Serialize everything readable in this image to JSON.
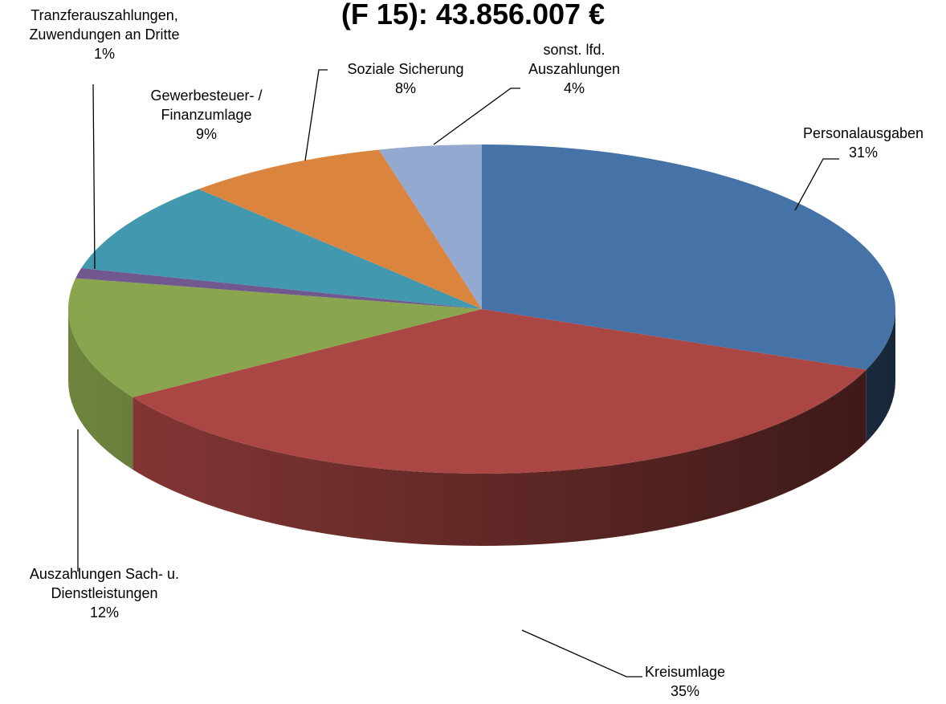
{
  "chart_data": {
    "type": "pie",
    "title": "(F 15): 43.856.007 €",
    "categories": [
      "Personalausgaben",
      "Kreisumlage",
      "Auszahlungen Sach- u. Dienstleistungen",
      "Tranzferauszahlungen, Zuwendungen an Dritte",
      "Gewerbesteuer- / Finanzumlage",
      "Soziale Sicherung",
      "sonst. lfd. Auszahlungen"
    ],
    "values": [
      31,
      35,
      12,
      1,
      9,
      8,
      4
    ],
    "value_labels": [
      "31%",
      "35%",
      "12%",
      "1%",
      "9%",
      "8%",
      "4%"
    ],
    "colors": [
      "#4572a7",
      "#aa4643",
      "#89a54e",
      "#71588f",
      "#4198af",
      "#db843d",
      "#93a9cf"
    ]
  }
}
